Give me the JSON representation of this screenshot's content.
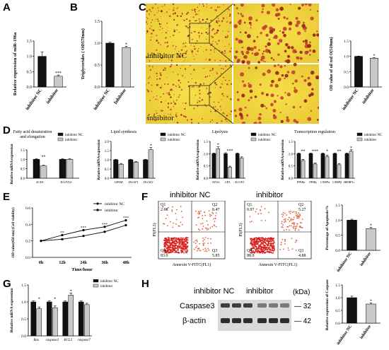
{
  "panel_letters": [
    "A",
    "B",
    "C",
    "D",
    "E",
    "F",
    "G",
    "H"
  ],
  "micro": {
    "label_nc": "inhibitor NC",
    "label_inh": "inhibitor"
  },
  "flow": {
    "title_nc": "inhibitor NC",
    "title_inh": "inhibitor",
    "xlabel": "Annexin V-FITC(FL1)",
    "ylabel": "PI(FL3)"
  },
  "western": {
    "lane_nc": "inhibitor NC",
    "lane_inh": "inhibitor",
    "kda_label": "(kDa)",
    "rows": [
      {
        "name": "Caspase3",
        "kda": "32"
      },
      {
        "name": "β-actin",
        "kda": "42"
      }
    ]
  },
  "colors": {
    "black": "#111111",
    "gray": "#c8c8c8",
    "red": "#d62020"
  },
  "chart_data": [
    {
      "id": "A",
      "type": "bar",
      "categories": [
        "inhibitor NC",
        "inhibitor"
      ],
      "values": [
        1.0,
        0.35
      ],
      "errors": [
        0.14,
        0.04
      ],
      "ylabel": "Relative expression of miR-196a",
      "ylim": [
        0,
        1.5
      ],
      "yticks": [
        "0.0",
        "0.5",
        "1.0",
        "1.5"
      ],
      "annotations": [
        "",
        "***"
      ]
    },
    {
      "id": "B",
      "type": "bar",
      "categories": [
        "inhibitor NC",
        "Inhibitor"
      ],
      "values": [
        1.0,
        0.9
      ],
      "errors": [
        0.02,
        0.03
      ],
      "ylabel": "Triglycerides ( OD570nm)",
      "ylim": [
        0,
        1.5
      ],
      "yticks": [
        "0.0",
        "0.5",
        "1.0",
        "1.5"
      ],
      "annotations": [
        "",
        "*"
      ]
    },
    {
      "id": "C",
      "type": "bar",
      "categories": [
        "inhibitor NC",
        "inhibitor"
      ],
      "values": [
        1.0,
        0.94
      ],
      "errors": [
        0.01,
        0.015
      ],
      "ylabel": "OD value of oil red O(510nm)",
      "ylim": [
        0,
        1.5
      ],
      "yticks": [
        "0.0",
        "0.5",
        "1.0",
        "1.5"
      ],
      "annotations": [
        "",
        "*"
      ]
    },
    {
      "id": "D1",
      "type": "bar",
      "title": "Fatty acid desaturation and elongation",
      "ylabel": "Relative mRNA expression",
      "ylim": [
        0,
        1.5
      ],
      "yticks": [
        "0.0",
        "0.5",
        "1.0",
        "1.5"
      ],
      "categories": [
        "SCD1",
        "ELOVL6"
      ],
      "series": [
        {
          "name": "inhibitor NC",
          "values": [
            1.0,
            1.0
          ],
          "errors": [
            0.04,
            0.03
          ]
        },
        {
          "name": "inhibitor",
          "values": [
            0.65,
            1.0
          ],
          "errors": [
            0.04,
            0.04
          ]
        }
      ],
      "annotations": [
        "**",
        ""
      ]
    },
    {
      "id": "D2",
      "type": "bar",
      "title": "Lipid synthesis",
      "ylabel": "Relative mRNA expression",
      "ylim": [
        0,
        2.0
      ],
      "yticks": [
        "0.0",
        "0.5",
        "1.0",
        "1.5",
        "2.0"
      ],
      "categories": [
        "GPAM",
        "DGAT1",
        "DGAT2"
      ],
      "series": [
        {
          "name": "inhibitor NC",
          "values": [
            1.0,
            1.0,
            1.0
          ],
          "errors": [
            0.03,
            0.03,
            0.03
          ]
        },
        {
          "name": "inhibitor",
          "values": [
            0.75,
            0.87,
            1.55
          ],
          "errors": [
            0.05,
            0.04,
            0.12
          ]
        }
      ],
      "annotations": [
        "",
        "",
        "*"
      ]
    },
    {
      "id": "D3",
      "type": "bar",
      "title": "Lipolysis",
      "ylabel": "Relative mRNA expression",
      "ylim": [
        0,
        1.5
      ],
      "yticks": [
        "0.0",
        "0.5",
        "1.0",
        "1.5"
      ],
      "categories": [
        "ATGL",
        "LPL",
        "ACOX1"
      ],
      "series": [
        {
          "name": "inhibitor NC",
          "values": [
            1.0,
            1.0,
            1.0
          ],
          "errors": [
            0.03,
            0.04,
            0.03
          ]
        },
        {
          "name": "inhibitor",
          "values": [
            1.2,
            0.45,
            0.82
          ],
          "errors": [
            0.08,
            0.04,
            0.05
          ]
        }
      ],
      "annotations": [
        "*",
        "***",
        ""
      ]
    },
    {
      "id": "D4",
      "type": "bar",
      "title": "Transcription regulation",
      "ylabel": "Relative mRNA expression",
      "ylim": [
        0,
        1.5
      ],
      "yticks": [
        "0.0",
        "0.5",
        "1.0",
        "1.5"
      ],
      "categories": [
        "PPARα",
        "PPARγ",
        "C/EBPα",
        "C/EBPβ",
        "SREBP1c"
      ],
      "series": [
        {
          "name": "inhibitor NC",
          "values": [
            1.0,
            1.0,
            1.0,
            1.0,
            1.0
          ],
          "errors": [
            0.03,
            0.03,
            0.03,
            0.03,
            0.03
          ]
        },
        {
          "name": "inhibitor",
          "values": [
            0.72,
            0.58,
            0.88,
            0.55,
            1.1
          ],
          "errors": [
            0.05,
            0.04,
            0.06,
            0.05,
            0.06
          ]
        }
      ],
      "annotations": [
        "**",
        "***",
        "*",
        "**",
        "*"
      ]
    },
    {
      "id": "E",
      "type": "line",
      "x": [
        "0h",
        "12h",
        "24h",
        "36h",
        "48h"
      ],
      "xlabel": "Time/hour",
      "ylabel": "OD value(450 nm) (Cell viability)",
      "ylim": [
        0.0,
        0.6
      ],
      "yticks": [
        "0.0",
        "0.2",
        "0.4",
        "0.6"
      ],
      "series": [
        {
          "name": "inhibitor NC",
          "values": [
            0.2,
            0.27,
            0.33,
            0.37,
            0.45
          ]
        },
        {
          "name": "inhibitor",
          "values": [
            0.2,
            0.22,
            0.26,
            0.31,
            0.39
          ]
        }
      ],
      "annotations": [
        "",
        "**",
        "***",
        "***",
        "***"
      ]
    },
    {
      "id": "F-scatter-NC",
      "type": "scatter",
      "xlabel": "Annexin V-FITC(FL1)",
      "ylabel": "PI(FL3)",
      "quadrants": [
        {
          "name": "Q1",
          "value": "2.68"
        },
        {
          "name": "Q2",
          "value": "8.47"
        },
        {
          "name": "Q3",
          "value": "5.85"
        },
        {
          "name": "Q4",
          "value": "83.0"
        }
      ]
    },
    {
      "id": "F-scatter-inhibitor",
      "type": "scatter",
      "xlabel": "Annexin V-FITC(FL1)",
      "ylabel": "PI(FL3)",
      "quadrants": [
        {
          "name": "Q1",
          "value": "0.97"
        },
        {
          "name": "Q2",
          "value": "5.27"
        },
        {
          "name": "Q3",
          "value": "4.88"
        },
        {
          "name": "Q4",
          "value": "88.9"
        }
      ]
    },
    {
      "id": "F",
      "type": "bar",
      "categories": [
        "inhibitor NC",
        "inhibitor"
      ],
      "values": [
        1.0,
        0.72
      ],
      "errors": [
        0.03,
        0.04
      ],
      "ylabel": "Percentage of Apoptosis/%",
      "ylim": [
        0,
        1.5
      ],
      "yticks": [
        "0.0",
        "0.5",
        "1.0",
        "1.5"
      ],
      "annotations": [
        "",
        "*"
      ]
    },
    {
      "id": "G",
      "type": "bar",
      "ylabel": "Relative mRNA expression",
      "ylim": [
        0,
        1.5
      ],
      "yticks": [
        "0.0",
        "0.5",
        "1.0",
        "1.5"
      ],
      "categories": [
        "Bax",
        "caspase3",
        "BCL2",
        "caspase7"
      ],
      "series": [
        {
          "name": "inhibitor NC",
          "values": [
            1.0,
            1.0,
            1.0,
            1.0
          ],
          "errors": [
            0.03,
            0.03,
            0.03,
            0.03
          ]
        },
        {
          "name": "inhibitor",
          "values": [
            0.8,
            0.83,
            1.2,
            0.92
          ],
          "errors": [
            0.05,
            0.05,
            0.06,
            0.04
          ]
        }
      ],
      "annotations": [
        "*",
        "*",
        "*",
        ""
      ]
    },
    {
      "id": "H",
      "type": "bar",
      "categories": [
        "inhibitor NC",
        "inhibitor"
      ],
      "values": [
        1.0,
        0.75
      ],
      "errors": [
        0.06,
        0.04
      ],
      "ylabel": "Relative expression of Caspase3",
      "ylim": [
        0,
        1.5
      ],
      "yticks": [
        "0.0",
        "0.5",
        "1.0",
        "1.5"
      ],
      "annotations": [
        "",
        "*"
      ]
    }
  ]
}
